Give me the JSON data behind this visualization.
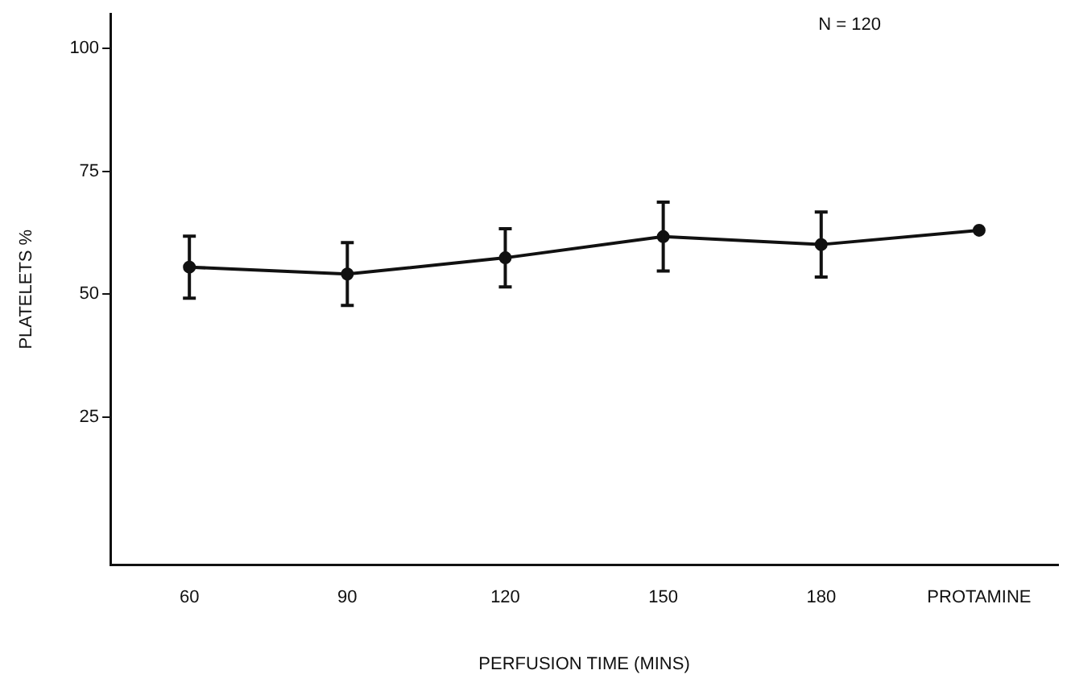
{
  "chart_data": {
    "type": "line",
    "xlabel": "PERFUSION TIME (MINS)",
    "ylabel": "PLATELETS %",
    "categories": [
      "60",
      "90",
      "120",
      "150",
      "180",
      "PROTAMINE"
    ],
    "series": [
      {
        "color": "#111111",
        "values": [
          55.5,
          54.1,
          57.4,
          61.7,
          60.1,
          63.0
        ],
        "errors": [
          6.3,
          6.4,
          5.9,
          7.0,
          6.6,
          null
        ]
      }
    ],
    "ylim": [
      -5,
      107
    ],
    "yticks": [
      25,
      50,
      75,
      100
    ],
    "grid": false,
    "legend": false,
    "marker": "circle",
    "line_style": "solid",
    "annotations": [
      "N = 120"
    ]
  }
}
